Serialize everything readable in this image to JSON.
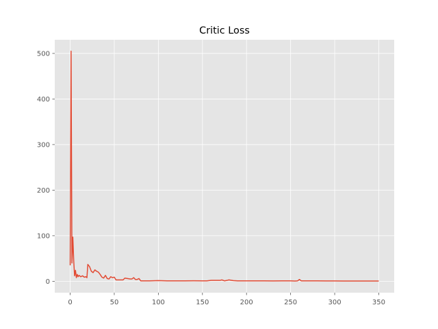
{
  "chart_data": {
    "type": "line",
    "title": "Critic Loss",
    "xlabel": "",
    "ylabel": "",
    "xlim": [
      -17.5,
      367.5
    ],
    "ylim": [
      -25,
      530
    ],
    "grid": true,
    "legend": "none",
    "colors": {
      "background": "#e5e5e5",
      "grid": "#ffffff",
      "line": "#e24a33",
      "tick": "#555555"
    },
    "x_ticks": [
      0,
      50,
      100,
      150,
      200,
      250,
      300,
      350
    ],
    "y_ticks": [
      0,
      100,
      200,
      300,
      400,
      500
    ],
    "series": [
      {
        "name": "",
        "x": [
          0,
          1,
          2,
          3,
          4,
          5,
          6,
          7,
          8,
          9,
          10,
          12,
          14,
          16,
          18,
          19,
          20,
          22,
          24,
          26,
          28,
          30,
          32,
          34,
          36,
          38,
          40,
          42,
          44,
          46,
          48,
          50,
          52,
          55,
          58,
          60,
          62,
          65,
          68,
          70,
          72,
          74,
          76,
          78,
          80,
          85,
          90,
          100,
          110,
          120,
          130,
          140,
          150,
          155,
          160,
          165,
          170,
          172,
          175,
          178,
          180,
          185,
          190,
          200,
          210,
          220,
          230,
          240,
          250,
          255,
          258,
          260,
          262,
          265,
          270,
          280,
          290,
          300,
          310,
          320,
          330,
          340,
          350
        ],
        "y": [
          35,
          505,
          40,
          97,
          45,
          12,
          24,
          8,
          15,
          10,
          13,
          10,
          12,
          9,
          10,
          8,
          37,
          32,
          22,
          19,
          25,
          22,
          20,
          15,
          9,
          7,
          13,
          6,
          5,
          10,
          8,
          9,
          3,
          3,
          3,
          3,
          7,
          6,
          5,
          5,
          8,
          4,
          4,
          6,
          1,
          1,
          1,
          1.5,
          1,
          1,
          1,
          1.2,
          1,
          1,
          2,
          2,
          2,
          3,
          1,
          2,
          3,
          1.5,
          1,
          1,
          1,
          1,
          0.8,
          1,
          1,
          0.5,
          1,
          4,
          1,
          1,
          1,
          1,
          0.8,
          0.8,
          0.6,
          0.6,
          0.6,
          0.5,
          0.5
        ]
      }
    ]
  }
}
